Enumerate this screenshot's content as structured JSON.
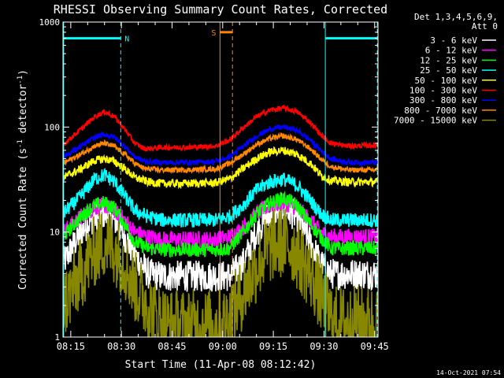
{
  "chart_data": {
    "type": "line",
    "title": "RHESSI Observing Summary Count Rates, Corrected",
    "xlabel": "Start Time (11-Apr-08 08:12:42)",
    "ylabel_main": "Corrected Count Rate (s",
    "ylabel_sup1": "-1",
    "ylabel_mid": " detector",
    "ylabel_sup2": "-1",
    "ylabel_end": ")",
    "y_scale": "log",
    "ylim": [
      1,
      1000
    ],
    "xlim_min": [
      12.7,
      106.0
    ],
    "y_ticks": [
      {
        "value": 1,
        "label": "1"
      },
      {
        "value": 10,
        "label": "10"
      },
      {
        "value": 100,
        "label": "100"
      },
      {
        "value": 1000,
        "label": "1000"
      }
    ],
    "x_ticks": [
      {
        "value": 15,
        "label": "08:15"
      },
      {
        "value": 30,
        "label": "08:30"
      },
      {
        "value": 45,
        "label": "08:45"
      },
      {
        "value": 60,
        "label": "09:00"
      },
      {
        "value": 75,
        "label": "09:15"
      },
      {
        "value": 90,
        "label": "09:30"
      },
      {
        "value": 105,
        "label": "09:45"
      }
    ],
    "legend_header": [
      "Det 1,3,4,5,6,9,",
      "Att 0"
    ],
    "legend_position": "right",
    "series": [
      {
        "name": "3 - 6 keV",
        "color": "#ffffff",
        "jitter": 0.15,
        "points": [
          [
            12.7,
            5
          ],
          [
            18,
            10
          ],
          [
            22,
            14
          ],
          [
            25,
            15
          ],
          [
            28,
            13
          ],
          [
            31,
            9
          ],
          [
            34,
            6
          ],
          [
            38,
            4
          ],
          [
            42,
            3.8
          ],
          [
            50,
            3.8
          ],
          [
            58,
            3.8
          ],
          [
            62,
            3.8
          ],
          [
            66,
            5
          ],
          [
            70,
            10
          ],
          [
            74,
            15
          ],
          [
            78,
            17
          ],
          [
            82,
            14
          ],
          [
            86,
            8
          ],
          [
            89,
            5
          ],
          [
            92,
            4
          ],
          [
            97,
            4
          ],
          [
            106,
            4
          ]
        ]
      },
      {
        "name": "6 - 12 keV",
        "color": "#ff00ff",
        "jitter": 0.08,
        "points": [
          [
            12.7,
            10
          ],
          [
            18,
            14
          ],
          [
            22,
            17
          ],
          [
            25,
            18
          ],
          [
            28,
            16
          ],
          [
            31,
            13
          ],
          [
            34,
            10
          ],
          [
            38,
            9
          ],
          [
            42,
            8.5
          ],
          [
            50,
            8.5
          ],
          [
            58,
            8.5
          ],
          [
            62,
            9
          ],
          [
            66,
            11
          ],
          [
            70,
            15
          ],
          [
            74,
            18
          ],
          [
            78,
            19
          ],
          [
            82,
            17
          ],
          [
            86,
            13
          ],
          [
            89,
            10
          ],
          [
            92,
            9
          ],
          [
            97,
            9
          ],
          [
            106,
            9
          ]
        ]
      },
      {
        "name": "12 - 25 keV",
        "color": "#00ff00",
        "jitter": 0.07,
        "points": [
          [
            12.7,
            9
          ],
          [
            18,
            14
          ],
          [
            22,
            18
          ],
          [
            25,
            19
          ],
          [
            28,
            17
          ],
          [
            31,
            12
          ],
          [
            34,
            8
          ],
          [
            38,
            7
          ],
          [
            42,
            6.8
          ],
          [
            50,
            6.8
          ],
          [
            58,
            6.8
          ],
          [
            62,
            7
          ],
          [
            66,
            10
          ],
          [
            70,
            15
          ],
          [
            74,
            19
          ],
          [
            78,
            21
          ],
          [
            82,
            18
          ],
          [
            86,
            12
          ],
          [
            89,
            9
          ],
          [
            92,
            7
          ],
          [
            97,
            7
          ],
          [
            106,
            7
          ]
        ]
      },
      {
        "name": "25 - 50 keV",
        "color": "#00ffff",
        "jitter": 0.07,
        "points": [
          [
            12.7,
            15
          ],
          [
            18,
            22
          ],
          [
            22,
            32
          ],
          [
            25,
            35
          ],
          [
            28,
            30
          ],
          [
            31,
            22
          ],
          [
            34,
            16
          ],
          [
            38,
            14
          ],
          [
            42,
            13
          ],
          [
            50,
            13
          ],
          [
            58,
            13
          ],
          [
            62,
            14
          ],
          [
            66,
            18
          ],
          [
            70,
            25
          ],
          [
            74,
            30
          ],
          [
            78,
            32
          ],
          [
            82,
            28
          ],
          [
            86,
            20
          ],
          [
            89,
            15
          ],
          [
            92,
            13
          ],
          [
            97,
            13
          ],
          [
            106,
            13
          ]
        ]
      },
      {
        "name": "50 - 100 keV",
        "color": "#ffff00",
        "jitter": 0.04,
        "points": [
          [
            12.7,
            33
          ],
          [
            18,
            40
          ],
          [
            22,
            48
          ],
          [
            25,
            50
          ],
          [
            28,
            47
          ],
          [
            31,
            40
          ],
          [
            34,
            33
          ],
          [
            38,
            30
          ],
          [
            42,
            29
          ],
          [
            50,
            29
          ],
          [
            58,
            29.5
          ],
          [
            62,
            32
          ],
          [
            66,
            40
          ],
          [
            70,
            50
          ],
          [
            74,
            58
          ],
          [
            78,
            60
          ],
          [
            82,
            55
          ],
          [
            86,
            45
          ],
          [
            89,
            35
          ],
          [
            92,
            31
          ],
          [
            97,
            30
          ],
          [
            106,
            30
          ]
        ]
      },
      {
        "name": "100 - 300 keV",
        "color": "#ff0000",
        "jitter": 0.025,
        "points": [
          [
            12.7,
            68
          ],
          [
            18,
            95
          ],
          [
            22,
            125
          ],
          [
            25,
            140
          ],
          [
            28,
            125
          ],
          [
            31,
            95
          ],
          [
            34,
            70
          ],
          [
            37,
            62
          ],
          [
            42,
            64
          ],
          [
            50,
            64
          ],
          [
            58,
            66
          ],
          [
            62,
            75
          ],
          [
            66,
            98
          ],
          [
            70,
            125
          ],
          [
            74,
            145
          ],
          [
            78,
            152
          ],
          [
            82,
            140
          ],
          [
            86,
            110
          ],
          [
            89,
            85
          ],
          [
            92,
            70
          ],
          [
            97,
            66
          ],
          [
            106,
            67
          ]
        ]
      },
      {
        "name": "300 - 800 keV",
        "color": "#0000ff",
        "jitter": 0.025,
        "points": [
          [
            12.7,
            52
          ],
          [
            18,
            65
          ],
          [
            22,
            80
          ],
          [
            25,
            85
          ],
          [
            28,
            80
          ],
          [
            31,
            65
          ],
          [
            34,
            52
          ],
          [
            37,
            47
          ],
          [
            42,
            46
          ],
          [
            50,
            46
          ],
          [
            58,
            47
          ],
          [
            62,
            52
          ],
          [
            66,
            65
          ],
          [
            70,
            82
          ],
          [
            74,
            96
          ],
          [
            78,
            100
          ],
          [
            82,
            93
          ],
          [
            86,
            75
          ],
          [
            89,
            60
          ],
          [
            92,
            50
          ],
          [
            97,
            46
          ],
          [
            106,
            46
          ]
        ]
      },
      {
        "name": "800 - 7000 keV",
        "color": "#ff8800",
        "jitter": 0.025,
        "points": [
          [
            12.7,
            45
          ],
          [
            18,
            55
          ],
          [
            22,
            66
          ],
          [
            25,
            70
          ],
          [
            28,
            65
          ],
          [
            31,
            55
          ],
          [
            34,
            45
          ],
          [
            37,
            40
          ],
          [
            42,
            39
          ],
          [
            50,
            39
          ],
          [
            58,
            40
          ],
          [
            62,
            45
          ],
          [
            66,
            55
          ],
          [
            70,
            68
          ],
          [
            74,
            78
          ],
          [
            78,
            82
          ],
          [
            82,
            76
          ],
          [
            86,
            62
          ],
          [
            89,
            50
          ],
          [
            92,
            42
          ],
          [
            97,
            39
          ],
          [
            106,
            39
          ]
        ]
      },
      {
        "name": "7000 - 15000 keV",
        "color": "#888800",
        "jitter": 0.35,
        "floor": 1,
        "points": [
          [
            12.7,
            2
          ],
          [
            18,
            4
          ],
          [
            22,
            6.5
          ],
          [
            25,
            8
          ],
          [
            28,
            7
          ],
          [
            31,
            5
          ],
          [
            34,
            3
          ],
          [
            37,
            2.2
          ],
          [
            40,
            1.6
          ],
          [
            44,
            1.3
          ],
          [
            60,
            1.3
          ],
          [
            64,
            2
          ],
          [
            68,
            3.5
          ],
          [
            72,
            6
          ],
          [
            75,
            7.5
          ],
          [
            78,
            8
          ],
          [
            81,
            7
          ],
          [
            84,
            5
          ],
          [
            87,
            3.5
          ],
          [
            90,
            2
          ],
          [
            93,
            1.4
          ],
          [
            106,
            1.4
          ]
        ]
      }
    ],
    "annotations": {
      "saa_color": "#00ffff",
      "saa_label": "N",
      "saa_intervals": [
        [
          12.7,
          29.8
        ],
        [
          90.5,
          106.0
        ]
      ],
      "saa_bar_y": 700,
      "night_solid": [
        12.9,
        90.4
      ],
      "night_dashed": [
        29.8,
        105.8
      ],
      "flag_color": "#ff8800",
      "flag_label": "S",
      "flag_solid": 59.2,
      "flag_dashed": 62.9,
      "flag_bar_y": 800
    }
  },
  "footer_date": "14-Oct-2021 07:54"
}
